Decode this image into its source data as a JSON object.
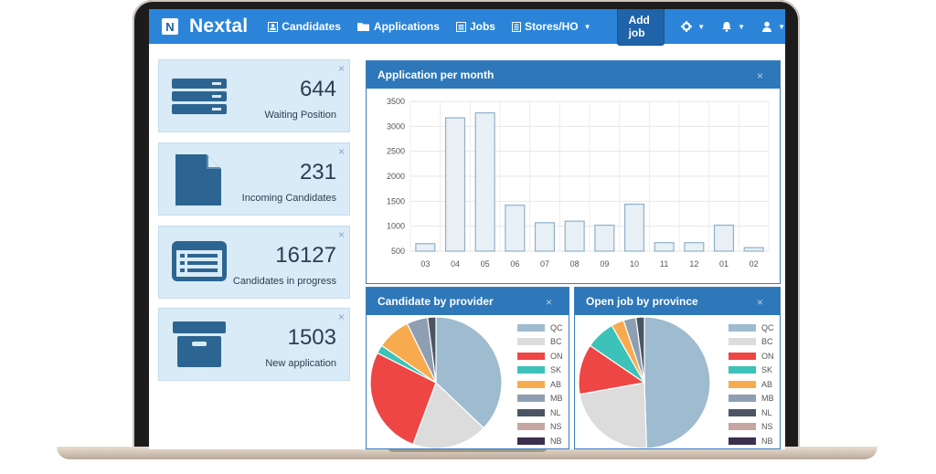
{
  "navbar": {
    "logo_letter": "N",
    "brand": "Nextal",
    "items": [
      {
        "label": "Candidates"
      },
      {
        "label": "Applications"
      },
      {
        "label": "Jobs"
      },
      {
        "label": "Stores/HO"
      }
    ],
    "add_job": "Add job"
  },
  "stats": [
    {
      "value": "644",
      "label": "Waiting Position",
      "icon": "list-icon"
    },
    {
      "value": "231",
      "label": "Incoming Candidates",
      "icon": "document-icon"
    },
    {
      "value": "16127",
      "label": "Candidates in progress",
      "icon": "id-card-icon"
    },
    {
      "value": "1503",
      "label": "New application",
      "icon": "archive-box-icon"
    }
  ],
  "close_glyph": "×",
  "panels": {
    "applications": {
      "title": "Application per month"
    },
    "provider": {
      "title": "Candidate by provider"
    },
    "province": {
      "title": "Open job by province"
    }
  },
  "chart_data": [
    {
      "type": "bar",
      "title": "Application per month",
      "categories": [
        "03",
        "04",
        "05",
        "06",
        "07",
        "08",
        "09",
        "10",
        "11",
        "12",
        "01",
        "02"
      ],
      "values": [
        650,
        3170,
        3270,
        1420,
        1070,
        1100,
        1020,
        1440,
        670,
        670,
        1020,
        570
      ],
      "yticks": [
        500,
        1000,
        1500,
        2000,
        2500,
        3000,
        3500
      ],
      "ylim": [
        500,
        3500
      ],
      "grid": true
    },
    {
      "type": "pie",
      "title": "Candidate by provider",
      "labels": [
        "QC",
        "BC",
        "ON",
        "SK",
        "AB",
        "MB",
        "NL",
        "NS",
        "NB"
      ],
      "values": [
        36,
        18,
        26,
        2,
        8,
        5,
        2,
        0,
        0
      ],
      "colors": [
        "#9ebbcf",
        "#dcdcdc",
        "#ee4545",
        "#3cc2b8",
        "#f7ab4e",
        "#8f9fb2",
        "#4b5563",
        "#c4a7a1",
        "#3d2f4f"
      ]
    },
    {
      "type": "pie",
      "title": "Open job by province",
      "labels": [
        "QC",
        "BC",
        "ON",
        "SK",
        "AB",
        "MB",
        "NL",
        "NS",
        "NB"
      ],
      "values": [
        48,
        22,
        12,
        7,
        3,
        3,
        2,
        0,
        0
      ],
      "colors": [
        "#9ebbcf",
        "#dcdcdc",
        "#ee4545",
        "#3cc2b8",
        "#f7ab4e",
        "#8f9fb2",
        "#4b5563",
        "#c4a7a1",
        "#3d2f4f"
      ]
    }
  ]
}
